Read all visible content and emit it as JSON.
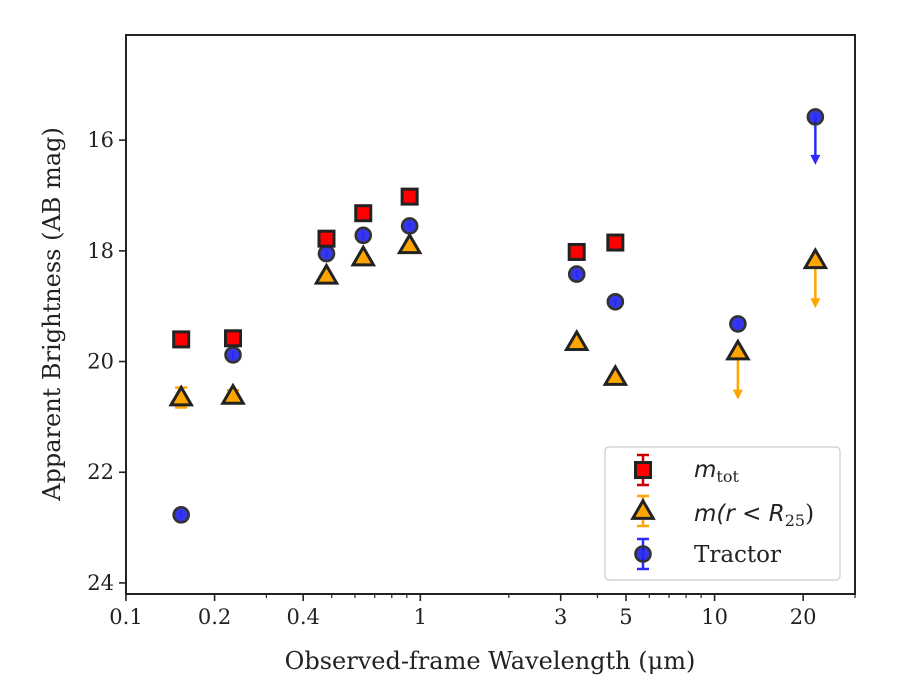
{
  "chart_data": {
    "type": "scatter",
    "xlabel": "Observed-frame Wavelength (μm)",
    "ylabel": "Apparent Brightness (AB mag)",
    "xscale": "log",
    "xlim": [
      0.1,
      30
    ],
    "ylim": [
      24.2,
      14.1
    ],
    "y_inverted": true,
    "xticks": [
      0.1,
      0.2,
      0.4,
      1,
      3,
      5,
      10,
      20
    ],
    "xtick_labels": [
      "0.1",
      "0.2",
      "0.4",
      "1",
      "3",
      "5",
      "10",
      "20"
    ],
    "yticks": [
      16,
      18,
      20,
      22,
      24
    ],
    "ytick_labels": [
      "16",
      "18",
      "20",
      "22",
      "24"
    ],
    "grid": false,
    "legend_position": "bottom-right",
    "series": [
      {
        "name": "m_tot",
        "marker": "square",
        "face_color": "#ff0000",
        "edge_color": "#222222",
        "error_color": "#cc0000",
        "points": [
          {
            "x": 0.154,
            "y": 19.6,
            "upper_limit": false
          },
          {
            "x": 0.231,
            "y": 19.58,
            "upper_limit": false
          },
          {
            "x": 0.48,
            "y": 17.78,
            "upper_limit": false
          },
          {
            "x": 0.64,
            "y": 17.32,
            "upper_limit": false
          },
          {
            "x": 0.92,
            "y": 17.02,
            "upper_limit": false
          },
          {
            "x": 3.4,
            "y": 18.02,
            "upper_limit": false
          },
          {
            "x": 4.6,
            "y": 17.85,
            "upper_limit": false
          }
        ]
      },
      {
        "name": "m(r < R25)",
        "marker": "triangle",
        "face_color": "#ffa500",
        "edge_color": "#222222",
        "error_color": "#ffa500",
        "points": [
          {
            "x": 0.154,
            "y": 20.65,
            "err": 0.18,
            "upper_limit": false
          },
          {
            "x": 0.231,
            "y": 20.62,
            "err": 0.1,
            "upper_limit": false
          },
          {
            "x": 0.48,
            "y": 18.45,
            "upper_limit": false
          },
          {
            "x": 0.64,
            "y": 18.12,
            "upper_limit": false
          },
          {
            "x": 0.92,
            "y": 17.9,
            "upper_limit": false
          },
          {
            "x": 3.4,
            "y": 19.65,
            "upper_limit": false
          },
          {
            "x": 4.6,
            "y": 20.28,
            "upper_limit": false
          },
          {
            "x": 12.0,
            "y": 19.82,
            "upper_limit": true
          },
          {
            "x": 22.0,
            "y": 18.17,
            "upper_limit": true
          }
        ]
      },
      {
        "name": "Tractor",
        "marker": "circle",
        "face_color": "#1414e6",
        "edge_color": "#333333",
        "error_color": "#2a2aff",
        "points": [
          {
            "x": 0.154,
            "y": 22.77,
            "upper_limit": false
          },
          {
            "x": 0.231,
            "y": 19.88,
            "upper_limit": false
          },
          {
            "x": 0.48,
            "y": 18.05,
            "upper_limit": false
          },
          {
            "x": 0.64,
            "y": 17.72,
            "upper_limit": false
          },
          {
            "x": 0.92,
            "y": 17.55,
            "upper_limit": false
          },
          {
            "x": 3.4,
            "y": 18.42,
            "upper_limit": false
          },
          {
            "x": 4.6,
            "y": 18.92,
            "upper_limit": false
          },
          {
            "x": 12.0,
            "y": 19.32,
            "upper_limit": false
          },
          {
            "x": 22.0,
            "y": 15.58,
            "upper_limit": true
          }
        ]
      }
    ]
  },
  "legend": {
    "entries": [
      {
        "series": "m_tot",
        "symbol": "m",
        "subscript": "tot",
        "rest": ""
      },
      {
        "series": "m(r < R25)",
        "symbol": "m(r < R",
        "subscript": "25",
        "rest": ")"
      },
      {
        "series": "Tractor",
        "label": "Tractor"
      }
    ]
  }
}
